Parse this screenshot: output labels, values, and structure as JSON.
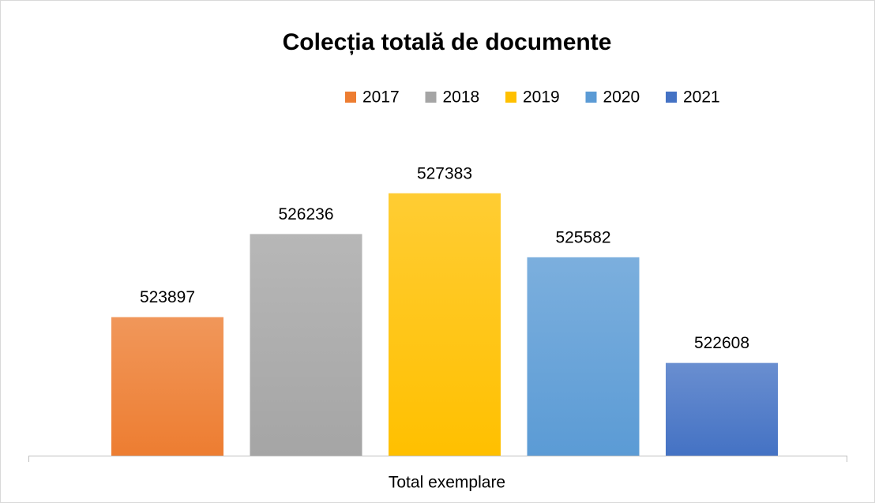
{
  "chart_data": {
    "type": "bar",
    "title": "Colecția totală de documente",
    "categories": [
      "Total exemplare"
    ],
    "series": [
      {
        "name": "2017",
        "color": "#ed7d31",
        "values": [
          523897
        ]
      },
      {
        "name": "2018",
        "color": "#a5a5a5",
        "values": [
          526236
        ]
      },
      {
        "name": "2019",
        "color": "#ffc000",
        "values": [
          527383
        ]
      },
      {
        "name": "2020",
        "color": "#5b9bd5",
        "values": [
          525582
        ]
      },
      {
        "name": "2021",
        "color": "#4472c4",
        "values": [
          522608
        ]
      }
    ],
    "ylim": [
      520000,
      528000
    ],
    "legend": "top"
  }
}
